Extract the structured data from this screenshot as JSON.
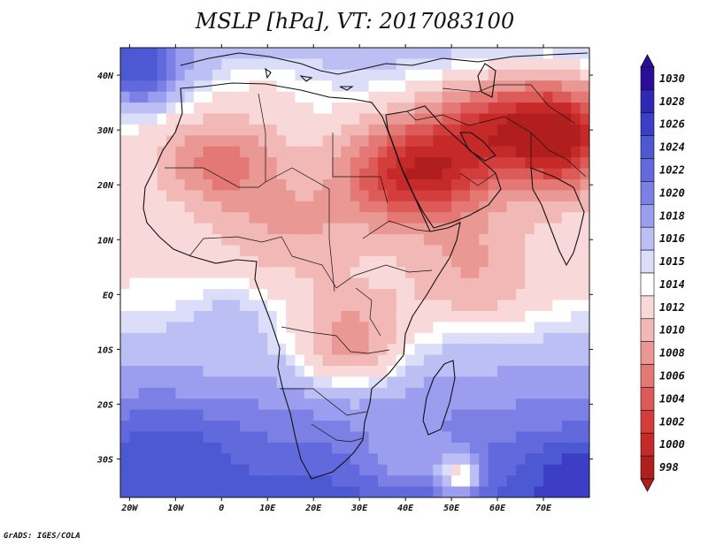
{
  "chart_data": {
    "type": "heatmap",
    "title": "MSLP [hPa], VT: 2017083100",
    "xlabel": "",
    "ylabel": "",
    "xlim": [
      -22,
      80
    ],
    "ylim": [
      -37,
      45
    ],
    "x_ticks": [
      {
        "value": -20,
        "label": "20W"
      },
      {
        "value": -10,
        "label": "10W"
      },
      {
        "value": 0,
        "label": "0"
      },
      {
        "value": 10,
        "label": "10E"
      },
      {
        "value": 20,
        "label": "20E"
      },
      {
        "value": 30,
        "label": "30E"
      },
      {
        "value": 40,
        "label": "40E"
      },
      {
        "value": 50,
        "label": "50E"
      },
      {
        "value": 60,
        "label": "60E"
      },
      {
        "value": 70,
        "label": "70E"
      }
    ],
    "y_ticks": [
      {
        "value": 40,
        "label": "40N"
      },
      {
        "value": 30,
        "label": "30N"
      },
      {
        "value": 20,
        "label": "20N"
      },
      {
        "value": 10,
        "label": "10N"
      },
      {
        "value": 0,
        "label": "EQ"
      },
      {
        "value": -10,
        "label": "10S"
      },
      {
        "value": -20,
        "label": "20S"
      },
      {
        "value": -30,
        "label": "30S"
      }
    ],
    "colorbar": {
      "levels": [
        1030,
        1028,
        1026,
        1024,
        1022,
        1020,
        1018,
        1016,
        1015,
        1014,
        1012,
        1010,
        1008,
        1006,
        1004,
        1002,
        1000,
        998
      ],
      "colors": [
        "#2a0e99",
        "#2f28b3",
        "#3c3fc6",
        "#4d58d3",
        "#6169dd",
        "#7c80e5",
        "#9b9eee",
        "#bcbff4",
        "#dcdef9",
        "#ffffff",
        "#f8d8d8",
        "#f2b8b6",
        "#ea9894",
        "#e37875",
        "#dc5a57",
        "#d33d3c",
        "#c52a29",
        "#b11e1e"
      ]
    },
    "fields": [
      {
        "lon": 42,
        "lat": 22,
        "value": 1001,
        "lonSpread": 15,
        "latSpread": 9
      },
      {
        "lon": 62,
        "lat": 30,
        "value": 1002,
        "lonSpread": 16,
        "latSpread": 9
      },
      {
        "lon": 75,
        "lat": 28,
        "value": 1004,
        "lonSpread": 10,
        "latSpread": 10
      },
      {
        "lon": 0,
        "lat": 24,
        "value": 1007,
        "lonSpread": 13,
        "latSpread": 8
      },
      {
        "lon": 15,
        "lat": 12,
        "value": 1010,
        "lonSpread": 16,
        "latSpread": 9
      },
      {
        "lon": 55,
        "lat": 5,
        "value": 1010,
        "lonSpread": 14,
        "latSpread": 10
      },
      {
        "lon": 28,
        "lat": -8,
        "value": 1009,
        "lonSpread": 12,
        "latSpread": 9
      },
      {
        "lon": 10,
        "lat": 36,
        "value": 1014,
        "lonSpread": 12,
        "latSpread": 6
      },
      {
        "lon": -18,
        "lat": 42,
        "value": 1026,
        "lonSpread": 9,
        "latSpread": 7
      },
      {
        "lon": -12,
        "lat": -30,
        "value": 1026,
        "lonSpread": 14,
        "latSpread": 8
      },
      {
        "lon": 78,
        "lat": -34,
        "value": 1028,
        "lonSpread": 10,
        "latSpread": 7
      },
      {
        "lon": 2,
        "lat": -6,
        "value": 1017,
        "lonSpread": 10,
        "latSpread": 8
      },
      {
        "lon": 40,
        "lat": -28,
        "value": 1018,
        "lonSpread": 10,
        "latSpread": 7
      },
      {
        "lon": 52,
        "lat": -33,
        "value": 1014,
        "lonSpread": 5,
        "latSpread": 4
      }
    ]
  },
  "footer": "GrADS: IGES/COLA"
}
